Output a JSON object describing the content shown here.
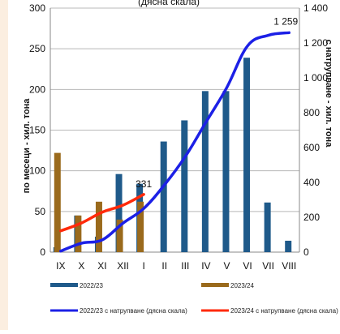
{
  "colors": {
    "bar_2223": "#1f5a8a",
    "bar_2324": "#9a6a1c",
    "line_2223": "#1c20e6",
    "line_2324": "#ff2a0a",
    "grid": "#b8b8b8",
    "background": "#ffffff",
    "left_strip": "#fbeee0"
  },
  "chart_data": {
    "type": "bar",
    "title": "(дясна скала)",
    "ylabel_left": "по месеци - хил. тона",
    "ylabel_right": "с натрупване - хил. тона",
    "categories": [
      "IX",
      "X",
      "XI",
      "XII",
      "I",
      "II",
      "III",
      "IV",
      "V",
      "VI",
      "VII",
      "VIII"
    ],
    "ylim_left": [
      0,
      300
    ],
    "ylim_right": [
      0,
      1400
    ],
    "yticks_left": [
      "0",
      "50",
      "100",
      "150",
      "200",
      "250",
      "300"
    ],
    "yticks_right": [
      "0",
      "200",
      "400",
      "600",
      "800",
      "1 000",
      "1 200",
      "1 400"
    ],
    "grid": true,
    "series": [
      {
        "name": "2022/23",
        "kind": "bar",
        "axis": "left",
        "values": [
          6,
          45,
          19,
          96,
          84,
          136,
          162,
          198,
          198,
          239,
          61,
          14
        ]
      },
      {
        "name": "2023/24",
        "kind": "bar",
        "axis": "left",
        "values": [
          122,
          45,
          62,
          40,
          62,
          null,
          null,
          null,
          null,
          null,
          null,
          null
        ]
      },
      {
        "name": "2022/23 с натрупване (дясна скала)",
        "kind": "line",
        "axis": "right",
        "values": [
          6,
          51,
          70,
          166,
          250,
          386,
          548,
          746,
          944,
          1183,
          1244,
          1259
        ]
      },
      {
        "name": "2023/24 с натрупване (дясна скала)",
        "kind": "line",
        "axis": "right",
        "values": [
          122,
          167,
          229,
          269,
          331,
          null,
          null,
          null,
          null,
          null,
          null,
          null
        ]
      }
    ],
    "annotations": [
      "1 259",
      "331"
    ],
    "legend_position": "bottom"
  }
}
